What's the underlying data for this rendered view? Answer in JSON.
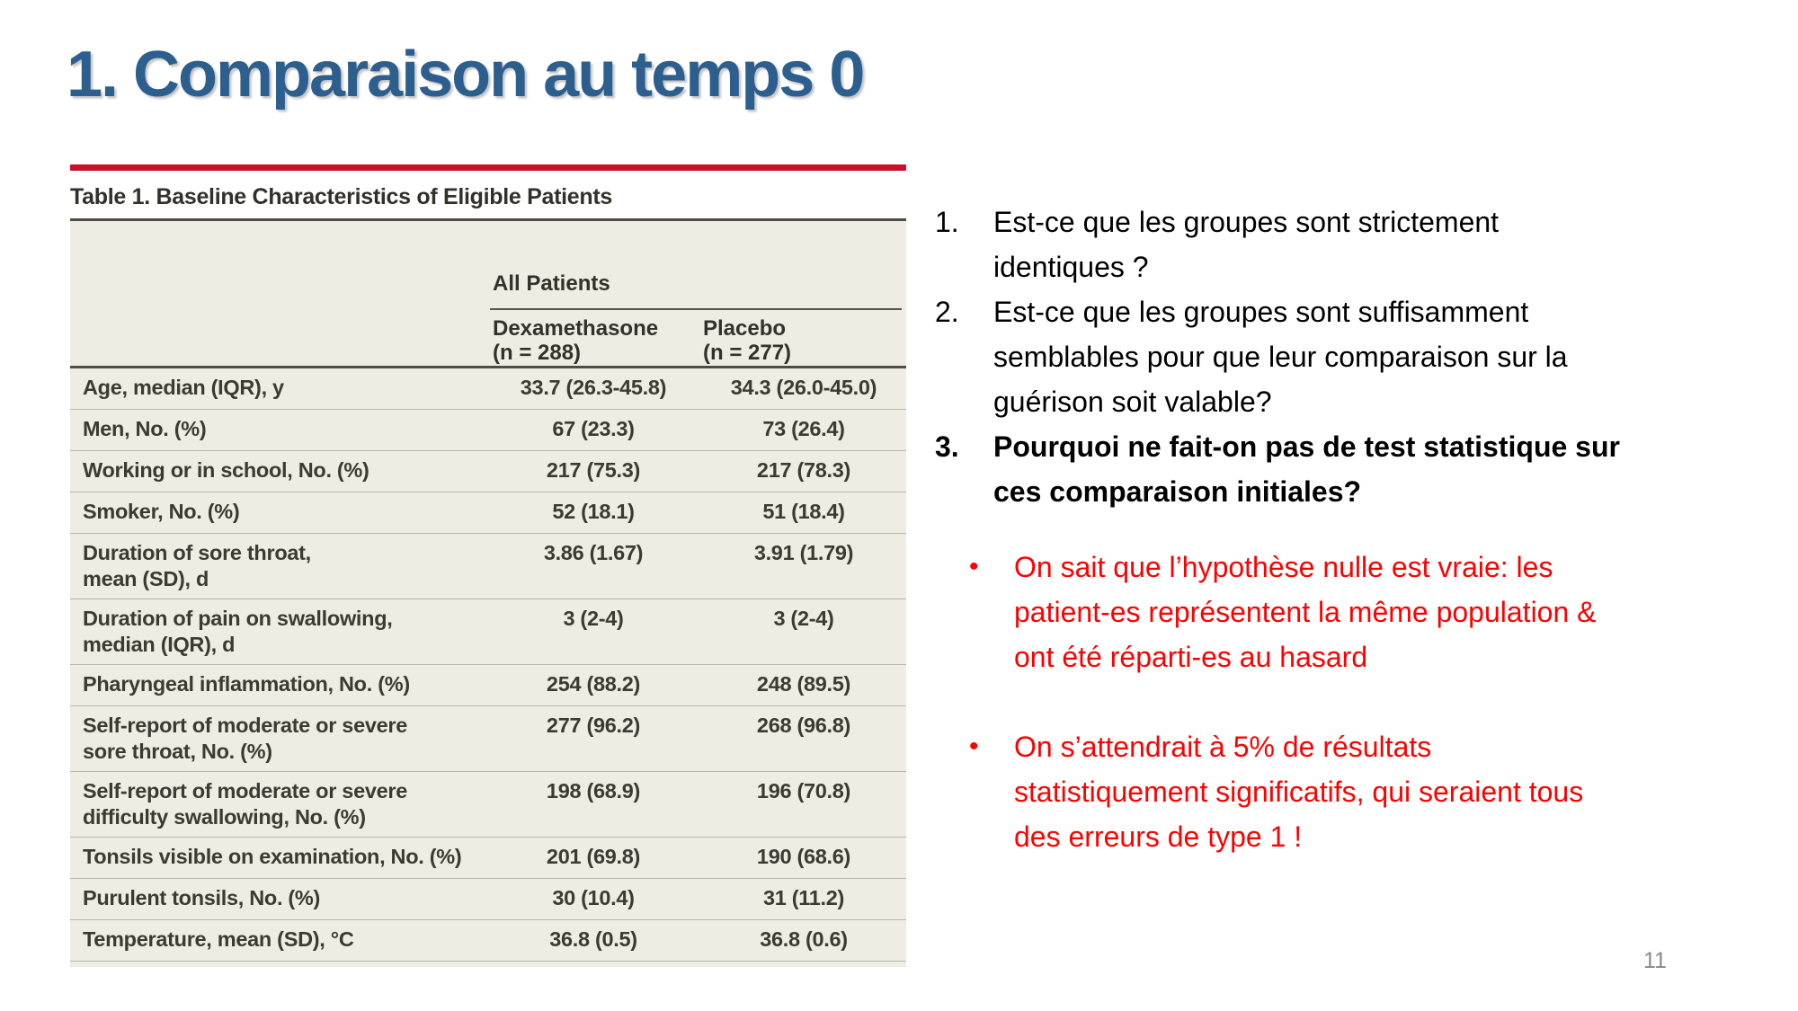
{
  "slide": {
    "title": "1. Comparaison au temps 0",
    "page_number": "11",
    "title_color": "#2C5E8E",
    "accent_red": "#C9112B"
  },
  "table": {
    "caption": "Table 1. Baseline Characteristics of Eligible Patients",
    "group_header": "All Patients",
    "columns": {
      "dexamethasone": "Dexamethasone\n(n = 288)",
      "placebo": "Placebo\n(n = 277)"
    },
    "background": "#EEEDE3",
    "rows": [
      {
        "label": "Age, median (IQR), y",
        "dexamethasone": "33.7 (26.3-45.8)",
        "placebo": "34.3 (26.0-45.0)"
      },
      {
        "label": "Men, No. (%)",
        "dexamethasone": "67 (23.3)",
        "placebo": "73 (26.4)"
      },
      {
        "label": "Working or in school, No. (%)",
        "dexamethasone": "217 (75.3)",
        "placebo": "217 (78.3)"
      },
      {
        "label": "Smoker, No. (%)",
        "dexamethasone": "52 (18.1)",
        "placebo": "51 (18.4)"
      },
      {
        "label": "Duration of sore throat,\nmean (SD), d",
        "dexamethasone": "3.86 (1.67)",
        "placebo": "3.91 (1.79)"
      },
      {
        "label": "Duration of pain on swallowing,\nmedian (IQR), d",
        "dexamethasone": "3 (2-4)",
        "placebo": "3 (2-4)"
      },
      {
        "label": "Pharyngeal inflammation, No. (%)",
        "dexamethasone": "254 (88.2)",
        "placebo": "248 (89.5)"
      },
      {
        "label": "Self-report of moderate or severe\nsore throat, No. (%)",
        "dexamethasone": "277 (96.2)",
        "placebo": "268 (96.8)"
      },
      {
        "label": "Self-report of moderate or severe\ndifficulty swallowing, No. (%)",
        "dexamethasone": "198 (68.9)",
        "placebo": "196 (70.8)"
      },
      {
        "label": "Tonsils visible on examination, No. (%)",
        "dexamethasone": "201 (69.8)",
        "placebo": "190 (68.6)"
      },
      {
        "label": "Purulent tonsils, No. (%)",
        "dexamethasone": "30 (10.4)",
        "placebo": "31 (11.2)"
      },
      {
        "label": "Temperature, mean (SD), °C",
        "dexamethasone": "36.8 (0.5)",
        "placebo": "36.8 (0.6)"
      }
    ]
  },
  "questions": {
    "items": [
      {
        "number": "1.",
        "text": "Est-ce que les groupes sont strictement\nidentiques ?"
      },
      {
        "number": "2.",
        "text": " Est-ce que les groupes sont suffisamment\nsemblables pour que leur comparaison sur la\nguérison soit valable?"
      },
      {
        "number": "3.",
        "text": "Pourquoi ne fait-on pas de test statistique sur\nces comparaison initiales?"
      }
    ]
  },
  "answers": {
    "color": "#FF0000",
    "bullet": "•",
    "items": [
      {
        "text": "On sait que l’hypothèse nulle est vraie: les\npatient-es représentent la même population &\nont été réparti-es au hasard"
      },
      {
        "text": "On s’attendrait à 5% de résultats\nstatistiquement significatifs, qui seraient tous\ndes erreurs de type 1 !"
      }
    ]
  }
}
